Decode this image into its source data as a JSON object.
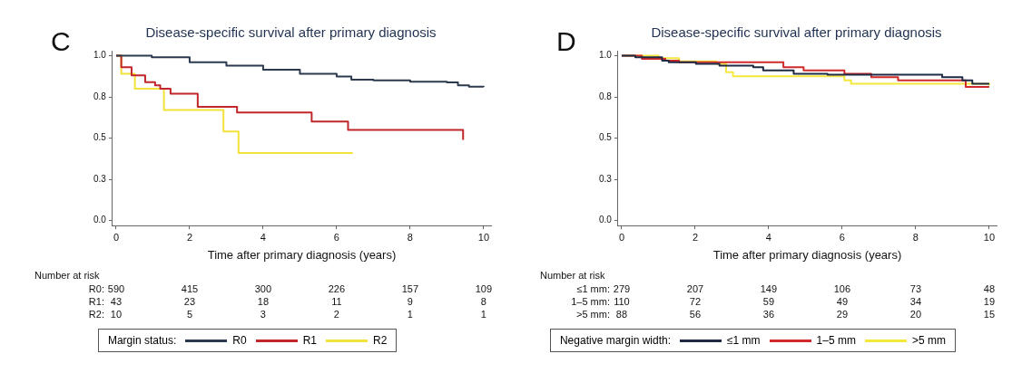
{
  "chart_data": [
    {
      "type": "step",
      "title": "Disease-specific survival after primary diagnosis",
      "xlabel": "Time after primary diagnosis (years)",
      "xlim": [
        -0.1,
        10.2
      ],
      "xticks": [
        0,
        2,
        4,
        6,
        8,
        10
      ],
      "ylim": [
        -0.03,
        1.03
      ],
      "yticks": [
        {
          "value": 0,
          "label": "0.0"
        },
        {
          "value": 0.25,
          "label": "0.3"
        },
        {
          "value": 0.5,
          "label": "0.5"
        },
        {
          "value": 0.75,
          "label": "0.8"
        },
        {
          "value": 1,
          "label": "1.0"
        }
      ],
      "grid": false,
      "legend": "bottom",
      "legend_title": "Margin status:",
      "marker": "none",
      "annotations": [
        "C",
        "Number at risk",
        "R0: 590 415 300 226 157 109",
        "R1: 43 23 18 11 9 8",
        "R2: 10 5 3 2 1 1"
      ],
      "series": [
        {
          "name": "R0",
          "color": "#2b3a4e",
          "x": [
            0,
            0.97,
            2,
            3,
            4,
            5,
            6,
            6.4,
            7,
            8,
            9,
            9.3,
            9.6,
            10
          ],
          "values": [
            1,
            0.99,
            0.96,
            0.94,
            0.915,
            0.89,
            0.873,
            0.855,
            0.85,
            0.842,
            0.838,
            0.82,
            0.812,
            0.811
          ]
        },
        {
          "name": "R1",
          "color": "#c0262b",
          "x": [
            0,
            0.14,
            0.42,
            0.79,
            1.06,
            1.2,
            1.48,
            2.22,
            3.29,
            5.32,
            6.31,
            9.44
          ],
          "values": [
            1,
            0.93,
            0.88,
            0.84,
            0.82,
            0.8,
            0.77,
            0.69,
            0.655,
            0.6,
            0.55,
            0.49
          ]
        },
        {
          "name": "R2",
          "color": "#f2e23a",
          "x": [
            0,
            0.14,
            0.51,
            1.3,
            2.92,
            3.33,
            6.44
          ],
          "values": [
            1,
            0.89,
            0.8,
            0.67,
            0.54,
            0.41,
            0.41
          ]
        }
      ]
    },
    {
      "type": "step",
      "title": "Disease-specific survival after primary diagnosis",
      "xlabel": "Time after primary diagnosis (years)",
      "xlim": [
        -0.1,
        10.2
      ],
      "xticks": [
        0,
        2,
        4,
        6,
        8,
        10
      ],
      "ylim": [
        -0.03,
        1.03
      ],
      "yticks": [
        {
          "value": 0,
          "label": "0.0"
        },
        {
          "value": 0.25,
          "label": "0.3"
        },
        {
          "value": 0.5,
          "label": "0.5"
        },
        {
          "value": 0.75,
          "label": "0.8"
        },
        {
          "value": 1,
          "label": "1.0"
        }
      ],
      "grid": false,
      "legend": "bottom",
      "legend_title": "Negative margin width:",
      "marker": "none",
      "annotations": [
        "D",
        "Number at risk",
        "≤1 mm: 279 207 149 106 73 48",
        "1–5 mm: 110 72 59 49 34 19",
        ">5 mm: 88 56 36 29 20 15"
      ],
      "series": [
        {
          "name": "≤1 mm",
          "color": "#1f2a44",
          "x": [
            0,
            0.37,
            1.1,
            1.28,
            2.02,
            2.66,
            3.58,
            3.85,
            4.68,
            5.6,
            8.72,
            9.27,
            9.54,
            10
          ],
          "values": [
            1,
            0.99,
            0.97,
            0.96,
            0.95,
            0.94,
            0.93,
            0.91,
            0.89,
            0.885,
            0.87,
            0.85,
            0.83,
            0.83
          ]
        },
        {
          "name": "1–5 mm",
          "color": "#d02a2a",
          "x": [
            0,
            0.55,
            1.19,
            1.56,
            4.4,
            4.95,
            6.06,
            6.79,
            7.52,
            9.36,
            10
          ],
          "values": [
            1,
            0.98,
            0.97,
            0.96,
            0.93,
            0.91,
            0.89,
            0.87,
            0.85,
            0.81,
            0.81
          ]
        },
        {
          "name": ">5 mm",
          "color": "#f5e83c",
          "x": [
            0,
            1.01,
            1.56,
            2.57,
            2.84,
            3.03,
            6.06,
            6.24,
            10
          ],
          "values": [
            1,
            0.985,
            0.965,
            0.95,
            0.9,
            0.875,
            0.85,
            0.83,
            0.82
          ]
        }
      ]
    }
  ]
}
